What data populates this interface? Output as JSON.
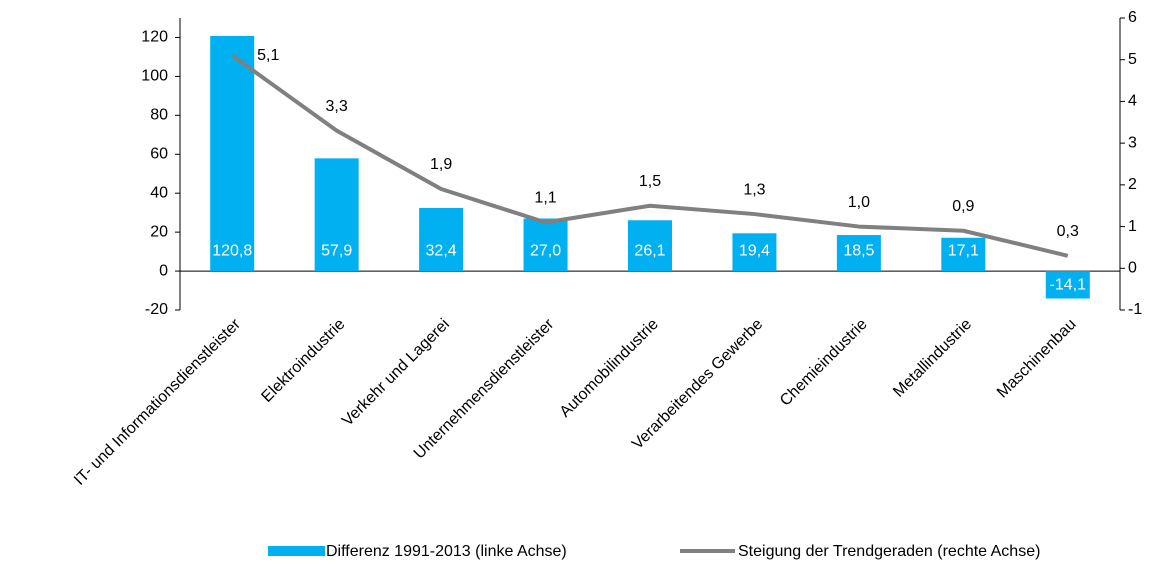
{
  "chart_data": {
    "type": "bar",
    "categories": [
      "IT- und Informationsdienstleister",
      "Elektroindustrie",
      "Verkehr und Lagerei",
      "Unternehmensdienstleister",
      "Automobilindustrie",
      "Verarbeitendes Gewerbe",
      "Chemieindustrie",
      "Metallindustrie",
      "Maschinenbau"
    ],
    "series": [
      {
        "name": "Differenz 1991-2013 (linke Achse)",
        "type": "bar",
        "color": "#00b0f0",
        "values": [
          120.8,
          57.9,
          32.4,
          27.0,
          26.1,
          19.4,
          18.5,
          17.1,
          -14.1
        ],
        "value_labels": [
          "120,8",
          "57,9",
          "32,4",
          "27,0",
          "26,1",
          "19,4",
          "18,5",
          "17,1",
          "-14,1"
        ]
      },
      {
        "name": "Steigung der Trendgeraden (rechte Achse)",
        "type": "line",
        "axis": "y2",
        "color": "#808080",
        "values": [
          5.1,
          3.3,
          1.9,
          1.1,
          1.5,
          1.3,
          1.0,
          0.9,
          0.3
        ],
        "value_labels": [
          "5,1",
          "3,3",
          "1,9",
          "1,1",
          "1,5",
          "1,3",
          "1,0",
          "0,9",
          "0,3"
        ]
      }
    ],
    "ylim": [
      -20,
      130
    ],
    "yticks": [
      -20,
      0,
      20,
      40,
      60,
      80,
      100,
      120
    ],
    "y2lim": [
      -1,
      6
    ],
    "y2ticks": [
      -1,
      0,
      1,
      2,
      3,
      4,
      5,
      6
    ]
  }
}
